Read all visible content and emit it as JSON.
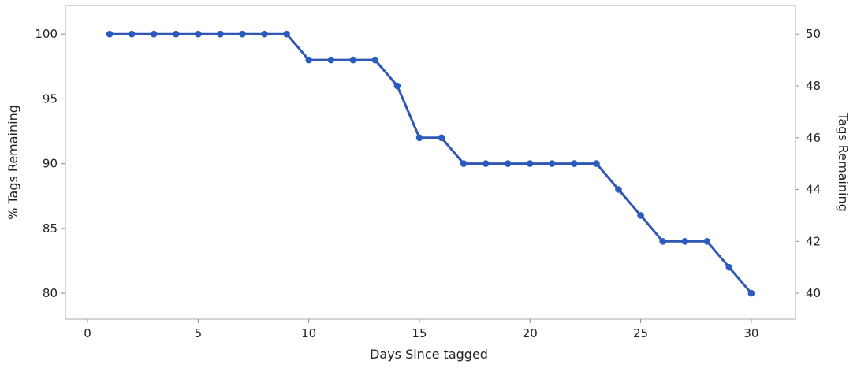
{
  "chart_data": {
    "type": "line",
    "xlabel": "Days Since tagged",
    "ylabel": "% Tags Remaining",
    "y2label": "Tags Remaining",
    "xlim": [
      -1,
      32
    ],
    "ylim": [
      78,
      102.2
    ],
    "y2lim": [
      39,
      51.1
    ],
    "grid": false,
    "x_ticks": [
      "0",
      "5",
      "10",
      "15",
      "20",
      "25",
      "30"
    ],
    "y_ticks": [
      "80",
      "85",
      "90",
      "95",
      "100"
    ],
    "y2_ticks": [
      "40",
      "42",
      "44",
      "46",
      "48",
      "50"
    ],
    "series": [
      {
        "color": "#2f57b3",
        "marker_color": "#2a5cc0",
        "x": [
          1,
          2,
          3,
          4,
          5,
          6,
          7,
          8,
          9,
          10,
          11,
          12,
          13,
          14,
          15,
          16,
          17,
          18,
          19,
          20,
          21,
          22,
          23,
          24,
          25,
          26,
          27,
          28,
          29,
          30
        ],
        "y": [
          100,
          100,
          100,
          100,
          100,
          100,
          100,
          100,
          100,
          98,
          98,
          98,
          98,
          96,
          92,
          92,
          90,
          90,
          90,
          90,
          90,
          90,
          90,
          88,
          86,
          84,
          84,
          84,
          82,
          80
        ]
      }
    ]
  }
}
